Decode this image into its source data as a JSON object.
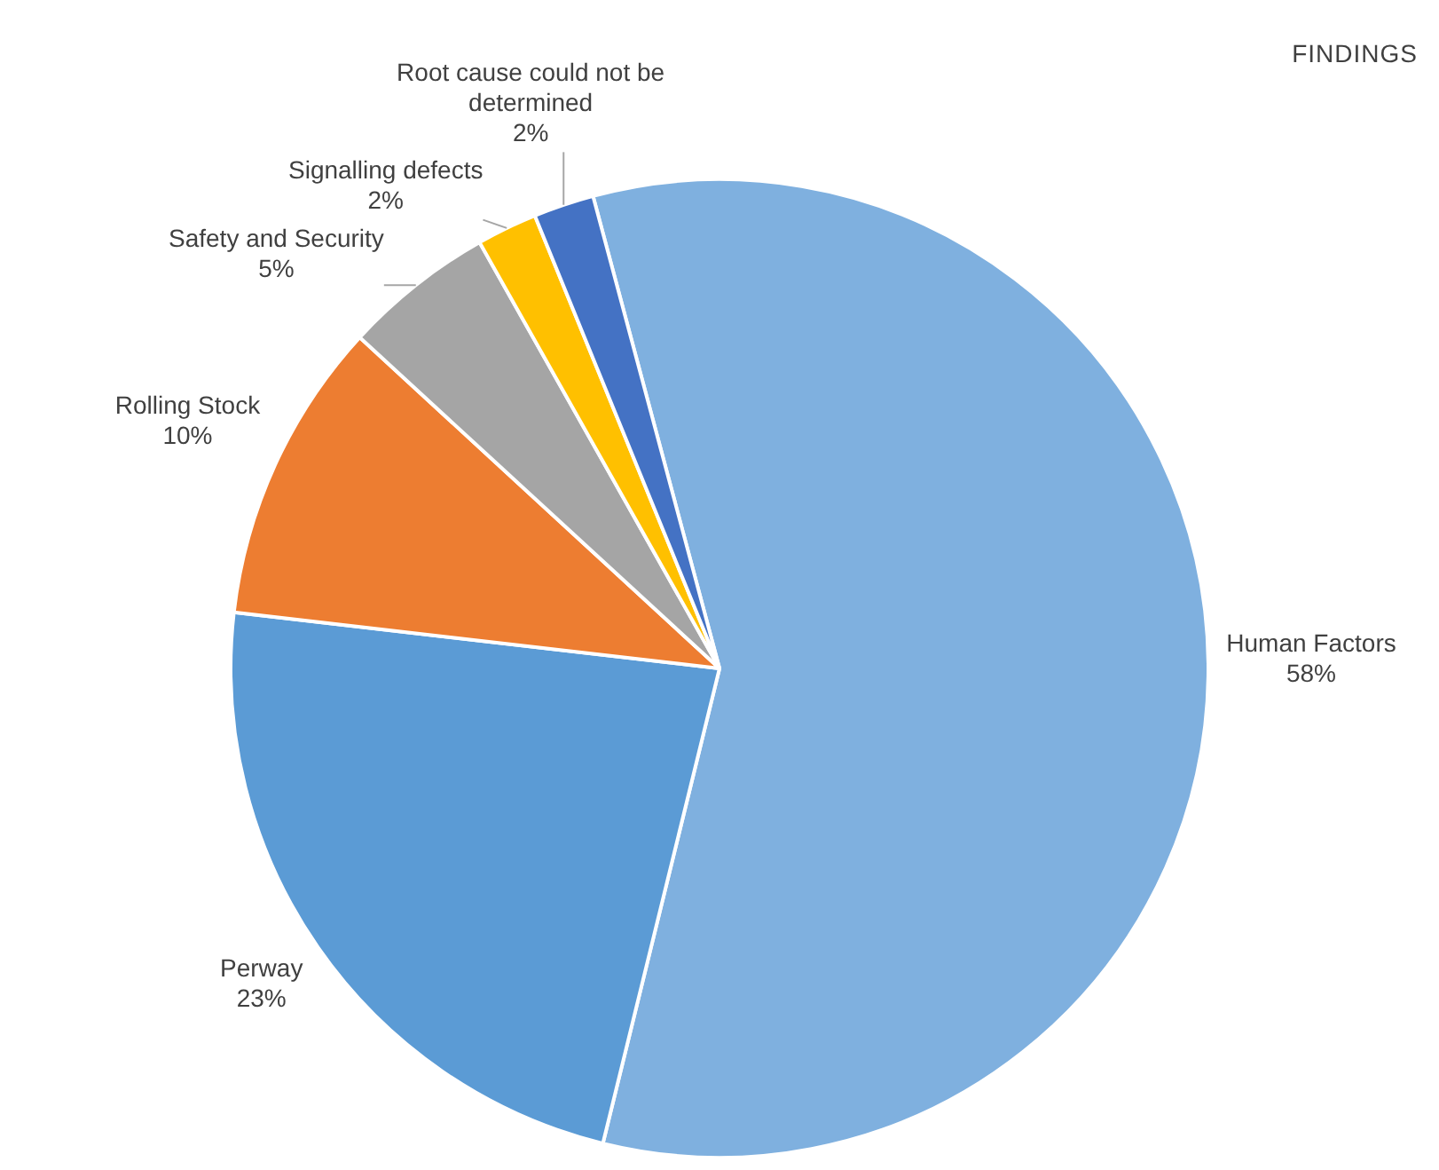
{
  "chart_data": {
    "type": "pie",
    "title": "FINDINGS",
    "categories": [
      "Human Factors",
      "Perway",
      "Rolling Stock",
      "Safety and Security",
      "Signalling defects",
      "Root cause could not be determined"
    ],
    "values": [
      58,
      23,
      10,
      5,
      2,
      2
    ],
    "value_labels": [
      "58%",
      "23%",
      "10%",
      "5%",
      "2%",
      "2%"
    ],
    "colors": [
      "#7fb0df",
      "#5b9bd5",
      "#ed7d31",
      "#a5a5a5",
      "#ffc000",
      "#4472c4"
    ],
    "legend": false
  }
}
